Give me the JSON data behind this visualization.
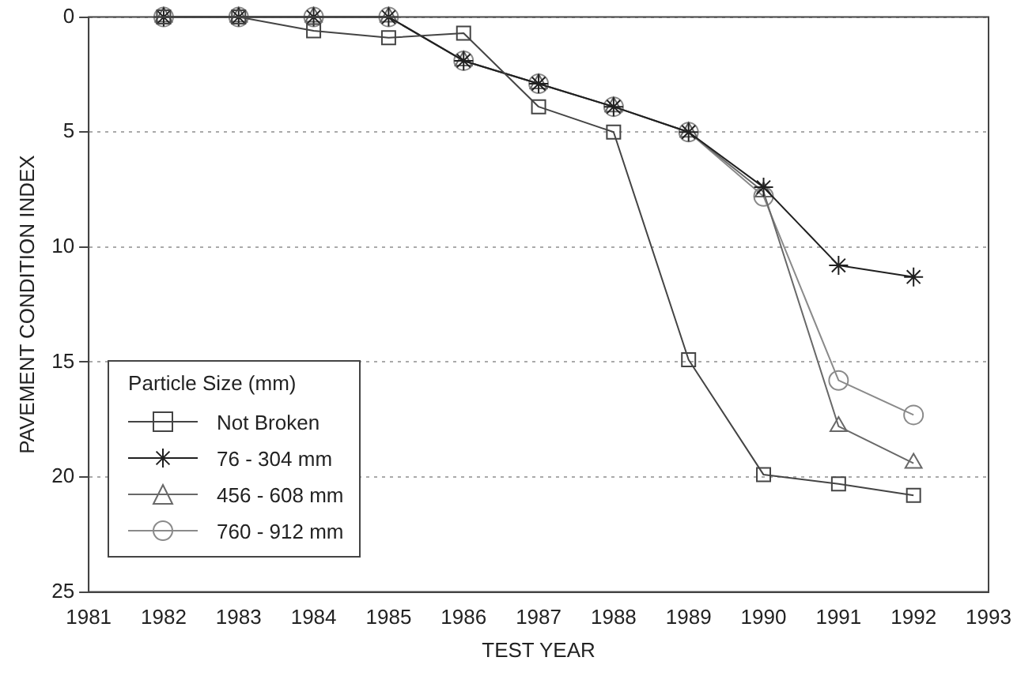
{
  "chart_data": {
    "type": "line",
    "xlabel": "TEST YEAR",
    "ylabel": "PAVEMENT CONDITION INDEX",
    "legend_title": "Particle Size (mm)",
    "legend": "bottom left",
    "grid": "y",
    "line_style": "solid",
    "x": [
      1982,
      1983,
      1984,
      1985,
      1986,
      1987,
      1988,
      1989,
      1990,
      1991,
      1992
    ],
    "xlim": [
      1981,
      1993
    ],
    "xticks": [
      1981,
      1982,
      1983,
      1984,
      1985,
      1986,
      1987,
      1988,
      1989,
      1990,
      1991,
      1992,
      1993
    ],
    "ylim": [
      25,
      0
    ],
    "yticks": [
      0,
      5,
      10,
      15,
      20,
      25
    ],
    "series": [
      {
        "name": "Not Broken",
        "color": "#444444",
        "marker": "square",
        "values": [
          0,
          0,
          0.6,
          0.9,
          0.7,
          3.9,
          5,
          14.9,
          19.9,
          20.3,
          20.8
        ]
      },
      {
        "name": "76 - 304 mm",
        "color": "#202020",
        "marker": "cross",
        "values": [
          0,
          0,
          0,
          0,
          1.9,
          2.9,
          3.9,
          5,
          7.4,
          10.8,
          11.3
        ]
      },
      {
        "name": "456 - 608 mm",
        "color": "#686868",
        "marker": "triangle",
        "values": [
          0,
          0,
          0,
          0,
          1.9,
          2.9,
          3.9,
          5,
          7.6,
          17.8,
          19.4
        ]
      },
      {
        "name": "760 - 912 mm",
        "color": "#8a8a8a",
        "marker": "circle",
        "values": [
          0,
          0,
          0,
          0,
          1.9,
          2.9,
          3.9,
          5,
          7.8,
          15.8,
          17.3
        ]
      }
    ]
  }
}
